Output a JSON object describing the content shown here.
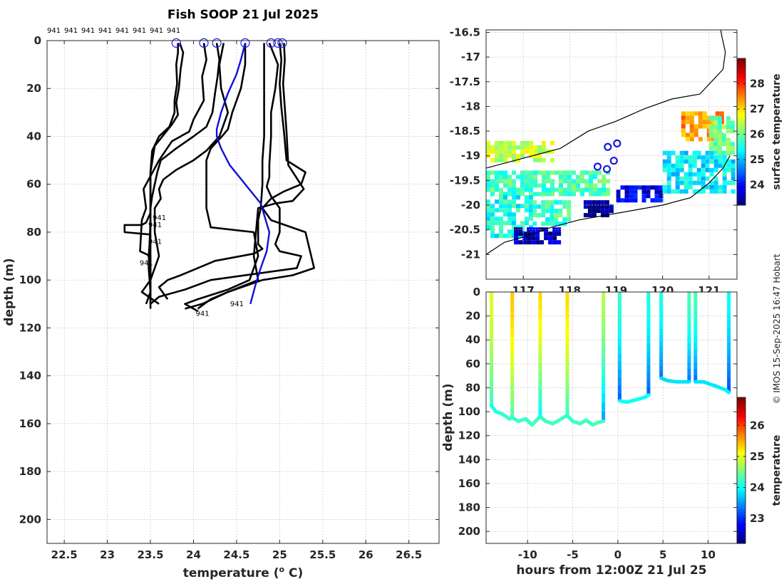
{
  "credit": "© IMOS 15-Sep-2025 16:47 Hobart",
  "colors": {
    "mean_profile": "#1010d8",
    "profile": "#000000",
    "coast": "#000000",
    "marker": "#1a1ae0"
  },
  "chart_data": [
    {
      "type": "line",
      "id": "profiles",
      "title": "Fish SOOP 21 Jul 2025",
      "xlabel": "temperature (",
      "xlabel_sup": "o",
      "xlabel_tail": " C)",
      "ylabel": "depth (m)",
      "xlim": [
        22.3,
        26.85
      ],
      "ylim": [
        0,
        210
      ],
      "y_reversed": true,
      "xticks": [
        22.5,
        23,
        23.5,
        24,
        24.5,
        25,
        25.5,
        26,
        26.5
      ],
      "xtick_labels": [
        "22.5",
        "23",
        "23.5",
        "24",
        "24.5",
        "25",
        "25.5",
        "26",
        "26.5"
      ],
      "yticks": [
        0,
        20,
        40,
        60,
        80,
        100,
        120,
        140,
        160,
        180,
        200
      ],
      "ytick_labels": [
        "0",
        "20",
        "40",
        "60",
        "80",
        "100",
        "120",
        "140",
        "160",
        "180",
        "200"
      ],
      "top_labels": [
        "941",
        "941",
        "941",
        "941",
        "941",
        "941",
        "941",
        "941"
      ],
      "profile_labels": [
        {
          "text": "941",
          "t": 23.5,
          "d": 74
        },
        {
          "text": "941",
          "t": 23.45,
          "d": 77
        },
        {
          "text": "941",
          "t": 23.45,
          "d": 84
        },
        {
          "text": "941",
          "t": 23.35,
          "d": 93
        },
        {
          "text": "941",
          "t": 24.4,
          "d": 110
        },
        {
          "text": "941",
          "t": 24.0,
          "d": 114
        }
      ],
      "start_markers": [
        23.8,
        24.12,
        24.27,
        24.6,
        24.9,
        24.98,
        25.03
      ],
      "mean_profile": {
        "temperature": [
          24.6,
          24.55,
          24.5,
          24.4,
          24.32,
          24.27,
          24.27,
          24.32,
          24.42,
          24.6,
          24.78,
          24.88,
          24.85,
          24.78,
          24.72,
          24.66
        ],
        "depth": [
          1,
          8,
          14,
          22,
          30,
          37,
          40,
          45,
          52,
          60,
          68,
          80,
          88,
          95,
          102,
          110
        ]
      },
      "series": [
        {
          "temperature": [
            23.82,
            23.82,
            23.8,
            23.81,
            23.78,
            23.78,
            23.75,
            23.72,
            23.6,
            23.52,
            23.5,
            23.5,
            23.48,
            23.5,
            23.45
          ],
          "depth": [
            1,
            5,
            10,
            18,
            25,
            30,
            33,
            36,
            40,
            46,
            55,
            75,
            95,
            105,
            110
          ]
        },
        {
          "temperature": [
            23.84,
            23.88,
            23.85,
            23.83,
            23.8,
            23.82,
            23.75,
            23.55,
            23.5,
            23.5,
            23.5,
            23.45,
            23.4,
            23.2,
            23.2,
            23.5,
            23.5,
            23.5
          ],
          "depth": [
            1,
            5,
            12,
            20,
            26,
            31,
            35,
            44,
            55,
            65,
            72,
            76,
            77,
            77,
            80,
            81,
            95,
            108
          ]
        },
        {
          "temperature": [
            24.12,
            24.15,
            24.1,
            24.12,
            24.0,
            23.95,
            23.75,
            23.6,
            23.48,
            23.42,
            23.45,
            23.4,
            23.38,
            23.5,
            23.5
          ],
          "depth": [
            1,
            8,
            15,
            25,
            33,
            38,
            42,
            50,
            58,
            62,
            70,
            75,
            88,
            90,
            112
          ]
        },
        {
          "temperature": [
            24.27,
            24.3,
            24.28,
            24.25,
            24.22,
            24.15,
            24.0,
            23.8,
            23.62,
            23.58,
            23.55,
            23.52,
            23.5,
            23.5,
            23.48,
            23.5,
            23.4,
            23.6
          ],
          "depth": [
            1,
            8,
            15,
            22,
            30,
            36,
            40,
            45,
            50,
            55,
            60,
            65,
            70,
            80,
            90,
            100,
            105,
            110
          ]
        },
        {
          "temperature": [
            24.35,
            24.3,
            24.32,
            24.4,
            24.3,
            24.15,
            24.0,
            23.8,
            23.65,
            23.6,
            23.62,
            23.55,
            23.55,
            23.6,
            23.5,
            23.5
          ],
          "depth": [
            1,
            10,
            20,
            30,
            40,
            46,
            50,
            54,
            58,
            62,
            66,
            70,
            80,
            90,
            100,
            110
          ]
        },
        {
          "temperature": [
            24.6,
            24.6,
            24.55,
            24.45,
            24.4,
            24.33,
            24.2,
            24.15,
            24.15,
            24.15,
            24.2,
            24.7,
            24.75,
            24.7,
            24.65,
            24.4,
            24.05,
            23.9,
            24.0,
            24.05
          ],
          "depth": [
            1,
            10,
            20,
            30,
            37,
            40,
            45,
            50,
            60,
            70,
            78,
            80,
            90,
            95,
            100,
            104,
            108,
            110,
            112,
            113
          ]
        },
        {
          "temperature": [
            24.82,
            24.82,
            24.82,
            24.8,
            24.8,
            24.78,
            24.75,
            24.75,
            24.75,
            24.8,
            24.7,
            24.25,
            24.05,
            23.85,
            23.7,
            23.6,
            23.7
          ],
          "depth": [
            1,
            20,
            40,
            50,
            60,
            70,
            75,
            80,
            85,
            87,
            89,
            92,
            95,
            98,
            100,
            103,
            108
          ]
        },
        {
          "temperature": [
            24.88,
            24.98,
            24.95,
            24.9,
            24.9,
            24.88,
            24.88,
            24.85,
            24.9,
            25.0,
            25.0,
            24.95,
            25.0,
            25.25,
            25.2,
            24.2,
            23.9,
            23.6,
            23.5
          ],
          "depth": [
            1,
            10,
            20,
            30,
            40,
            52,
            57,
            61,
            65,
            70,
            80,
            85,
            88,
            90,
            95,
            100,
            104,
            107,
            110
          ]
        },
        {
          "temperature": [
            25.0,
            25.02,
            25.0,
            25.02,
            25.05,
            25.08,
            25.3,
            25.25,
            25.05,
            24.9,
            24.8,
            24.9,
            25.3,
            25.4,
            25.15,
            24.8,
            24.4,
            24.1,
            23.9
          ],
          "depth": [
            1,
            8,
            18,
            28,
            38,
            50,
            55,
            60,
            63,
            66,
            70,
            75,
            80,
            95,
            98,
            100,
            105,
            110,
            112
          ]
        },
        {
          "temperature": [
            25.05,
            25.06,
            25.04,
            25.06,
            25.08,
            25.1,
            25.28,
            25.15,
            24.95,
            24.75,
            24.7,
            24.75,
            24.4,
            24.2,
            24.05
          ],
          "depth": [
            1,
            8,
            18,
            28,
            38,
            52,
            62,
            67,
            68,
            70,
            90,
            100,
            105,
            108,
            112
          ]
        }
      ]
    },
    {
      "type": "heatmap",
      "id": "sst_map",
      "title": "",
      "xlim": [
        116.2,
        121.6
      ],
      "ylim": [
        -21.5,
        -16.45
      ],
      "yticks": [
        -16.5,
        -17,
        -17.5,
        -18,
        -18.5,
        -19,
        -19.5,
        -20,
        -20.5,
        -21
      ],
      "ytick_labels": [
        "-16.5",
        "-17",
        "-17.5",
        "-18",
        "-18.5",
        "-19",
        "-19.5",
        "-20",
        "-20.5",
        "-21"
      ],
      "xticks": [
        117,
        118,
        119,
        120,
        121
      ],
      "xtick_labels": [
        "117",
        "118",
        "119",
        "120",
        "121"
      ],
      "colorbar": {
        "label": "surface temperature",
        "min": 23.2,
        "max": 29,
        "ticks": [
          24,
          25,
          26,
          27,
          28
        ],
        "tick_labels": [
          "24",
          "25",
          "26",
          "27",
          "28"
        ]
      },
      "coast_north": [
        [
          116.2,
          -19.25
        ],
        [
          117.0,
          -19.05
        ],
        [
          117.8,
          -18.85
        ],
        [
          118.4,
          -18.5
        ],
        [
          119.0,
          -18.3
        ],
        [
          119.6,
          -18.05
        ],
        [
          120.2,
          -17.85
        ],
        [
          120.8,
          -17.75
        ],
        [
          121.1,
          -17.45
        ],
        [
          121.3,
          -17.25
        ],
        [
          121.35,
          -16.9
        ],
        [
          121.28,
          -16.6
        ],
        [
          121.25,
          -16.45
        ]
      ],
      "coast_south": [
        [
          116.2,
          -21.0
        ],
        [
          116.6,
          -20.75
        ],
        [
          117.0,
          -20.65
        ],
        [
          117.6,
          -20.45
        ],
        [
          118.2,
          -20.3
        ],
        [
          118.8,
          -20.2
        ],
        [
          119.4,
          -20.1
        ],
        [
          120.0,
          -20.0
        ],
        [
          120.6,
          -19.85
        ],
        [
          121.0,
          -19.55
        ],
        [
          121.3,
          -19.25
        ],
        [
          121.45,
          -19.0
        ]
      ],
      "track_points": [
        [
          118.82,
          -18.82
        ],
        [
          119.02,
          -18.75
        ],
        [
          118.95,
          -19.1
        ],
        [
          118.6,
          -19.22
        ],
        [
          118.8,
          -19.27
        ]
      ],
      "sst_blocks": [
        {
          "lon": [
            116.2,
            117.6
          ],
          "lat": [
            -19.1,
            -18.7
          ],
          "value": 26.5
        },
        {
          "lon": [
            116.2,
            118.8
          ],
          "lat": [
            -19.8,
            -19.3
          ],
          "value": 25.8
        },
        {
          "lon": [
            116.2,
            117.2
          ],
          "lat": [
            -20.6,
            -19.8
          ],
          "value": 25.5
        },
        {
          "lon": [
            117.2,
            118.0
          ],
          "lat": [
            -20.4,
            -19.9
          ],
          "value": 25.7
        },
        {
          "lon": [
            116.8,
            117.8
          ],
          "lat": [
            -20.75,
            -20.45
          ],
          "value": 23.5
        },
        {
          "lon": [
            118.3,
            118.9
          ],
          "lat": [
            -20.2,
            -19.9
          ],
          "value": 23.3
        },
        {
          "lon": [
            119.0,
            120.0
          ],
          "lat": [
            -19.9,
            -19.6
          ],
          "value": 23.8
        },
        {
          "lon": [
            120.0,
            121.5
          ],
          "lat": [
            -19.7,
            -18.9
          ],
          "value": 25.3
        },
        {
          "lon": [
            120.4,
            121.3
          ],
          "lat": [
            -18.7,
            -18.1
          ],
          "value": 27.4
        },
        {
          "lon": [
            121.0,
            121.5
          ],
          "lat": [
            -18.9,
            -18.2
          ],
          "value": 26.0
        }
      ]
    },
    {
      "type": "heatmap",
      "id": "depth_time",
      "xlabel": "hours from 12:00Z 21 Jul 25",
      "ylabel": "depth (m)",
      "xlim": [
        -14.6,
        13.2
      ],
      "ylim": [
        0,
        210
      ],
      "y_reversed": true,
      "xticks": [
        -10,
        -5,
        0,
        5,
        10
      ],
      "xtick_labels": [
        "-10",
        "-5",
        "0",
        "5",
        "10"
      ],
      "yticks": [
        0,
        20,
        40,
        60,
        80,
        100,
        120,
        140,
        160,
        180,
        200
      ],
      "ytick_labels": [
        "0",
        "20",
        "40",
        "60",
        "80",
        "100",
        "120",
        "140",
        "160",
        "180",
        "200"
      ],
      "colorbar": {
        "label": "temperature",
        "min": 22.2,
        "max": 26.9,
        "ticks": [
          23,
          24,
          25,
          26
        ],
        "tick_labels": [
          "23",
          "24",
          "25",
          "26"
        ]
      },
      "casts": [
        {
          "t": -14.0,
          "bottom": 95,
          "temp_top": 25.0,
          "temp_bottom": 24.2
        },
        {
          "t": -11.7,
          "bottom": 105,
          "temp_top": 25.4,
          "temp_bottom": 24.3
        },
        {
          "t": -8.6,
          "bottom": 104,
          "temp_top": 25.3,
          "temp_bottom": 23.9
        },
        {
          "t": -5.6,
          "bottom": 103,
          "temp_top": 25.3,
          "temp_bottom": 24.2
        },
        {
          "t": -1.6,
          "bottom": 108,
          "temp_top": 24.8,
          "temp_bottom": 23.5
        },
        {
          "t": 0.2,
          "bottom": 91,
          "temp_top": 24.2,
          "temp_bottom": 23.2
        },
        {
          "t": 3.4,
          "bottom": 86,
          "temp_top": 24.1,
          "temp_bottom": 23.2
        },
        {
          "t": 4.8,
          "bottom": 72,
          "temp_top": 24.1,
          "temp_bottom": 23.3
        },
        {
          "t": 7.9,
          "bottom": 75,
          "temp_top": 24.3,
          "temp_bottom": 23.3
        },
        {
          "t": 8.6,
          "bottom": 75,
          "temp_top": 24.3,
          "temp_bottom": 23.3
        },
        {
          "t": 12.3,
          "bottom": 84,
          "temp_top": 24.0,
          "temp_bottom": 23.1
        }
      ],
      "bottom_trace": [
        [
          -14.0,
          95
        ],
        [
          -13.5,
          100
        ],
        [
          -12.8,
          102
        ],
        [
          -12.0,
          106
        ],
        [
          -11.7,
          105
        ],
        [
          -11.0,
          108
        ],
        [
          -10.2,
          106
        ],
        [
          -9.5,
          111
        ],
        [
          -9.0,
          107
        ],
        [
          -8.6,
          104
        ],
        [
          -8.0,
          108
        ],
        [
          -7.2,
          110
        ],
        [
          -6.5,
          107
        ],
        [
          -5.6,
          103
        ],
        [
          -5.0,
          108
        ],
        [
          -4.2,
          110
        ],
        [
          -3.5,
          107
        ],
        [
          -2.8,
          111
        ],
        [
          -2.2,
          109
        ],
        [
          -1.6,
          108
        ]
      ],
      "bottom_trace_2": [
        [
          0.2,
          91
        ],
        [
          1.0,
          92
        ],
        [
          2.0,
          90
        ],
        [
          3.0,
          88
        ],
        [
          3.4,
          86
        ]
      ],
      "bottom_trace_3": [
        [
          4.8,
          72
        ],
        [
          5.5,
          74
        ],
        [
          6.5,
          75
        ],
        [
          7.9,
          75
        ]
      ],
      "bottom_trace_4": [
        [
          8.6,
          75
        ],
        [
          9.5,
          75
        ],
        [
          10.2,
          77
        ],
        [
          11.0,
          79
        ],
        [
          12.0,
          82
        ],
        [
          12.3,
          84
        ]
      ]
    }
  ]
}
